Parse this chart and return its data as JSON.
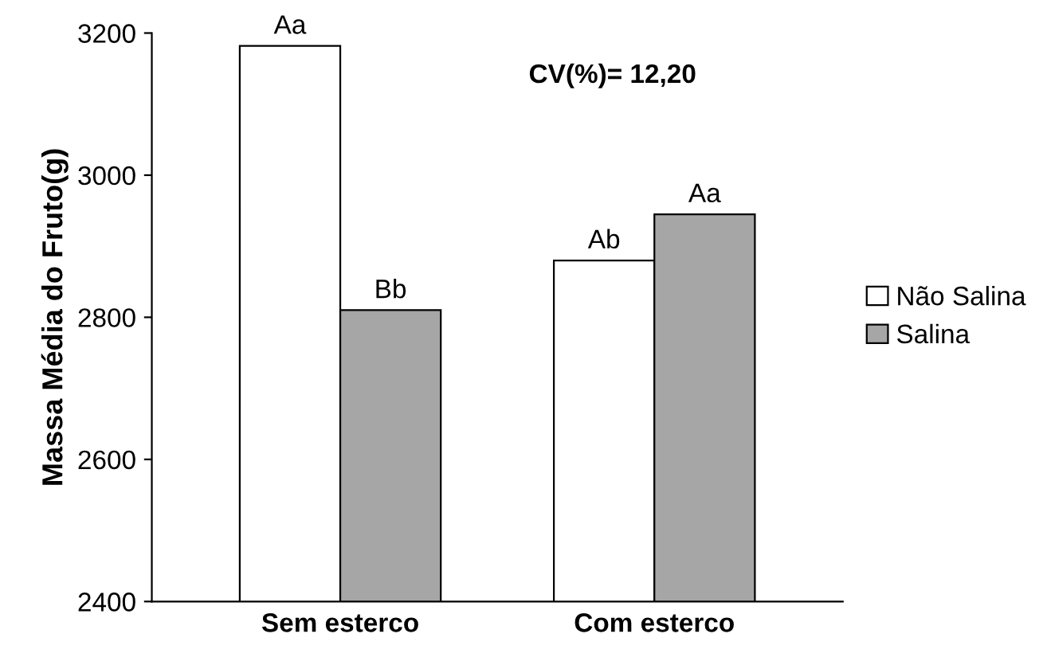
{
  "chart_data": {
    "type": "bar",
    "ylabel": "Massa Média do Fruto(g)",
    "categories": [
      "Sem esterco",
      "Com esterco"
    ],
    "series": [
      {
        "name": "Não Salina",
        "color": "#ffffff",
        "values": [
          3182,
          2880
        ],
        "value_labels": [
          "Aa",
          "Ab"
        ]
      },
      {
        "name": "Salina",
        "color": "#a6a6a6",
        "values": [
          2810,
          2945
        ],
        "value_labels": [
          "Bb",
          "Aa"
        ]
      }
    ],
    "ylim": [
      2400,
      3200
    ],
    "yticks": [
      2400,
      2600,
      2800,
      3000,
      3200
    ],
    "annotations": [
      "CV(%)= 12,20"
    ],
    "legend": "right",
    "grid": false
  }
}
